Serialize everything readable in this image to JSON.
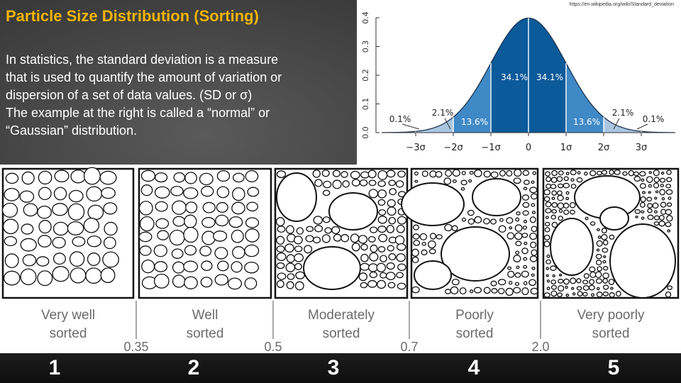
{
  "title": "Particle Size Distribution (Sorting)",
  "body_lines": [
    "In statistics, the standard deviation is a measure",
    "that is used to quantify the amount of variation or",
    "dispersion of a set of data values. (SD or σ)",
    "The example at the right is called a “normal” or",
    "“Gaussian” distribution."
  ],
  "source_url": "https://en.wikipedia.org/wiki/Standard_deviation",
  "chart_data": {
    "type": "area",
    "title": "",
    "xlabel": "",
    "ylabel": "",
    "xlim": [
      -3.9,
      3.9
    ],
    "ylim": [
      0,
      0.4
    ],
    "y_ticks": [
      "0.0",
      "0.1",
      "0.2",
      "0.3",
      "0.4"
    ],
    "x_ticks": [
      "−3σ",
      "−2σ",
      "−1σ",
      "0",
      "1σ",
      "2σ",
      "3σ"
    ],
    "x_tick_values": [
      -3,
      -2,
      -1,
      0,
      1,
      2,
      3
    ],
    "bands": [
      {
        "from": -3.9,
        "to": -3,
        "percent": "0.1%",
        "color": "#a9c6e1"
      },
      {
        "from": -3,
        "to": -2,
        "percent": "2.1%",
        "color": "#a9c6e1"
      },
      {
        "from": -2,
        "to": -1,
        "percent": "13.6%",
        "color": "#3f89c6"
      },
      {
        "from": -1,
        "to": 0,
        "percent": "34.1%",
        "color": "#0b5a99"
      },
      {
        "from": 0,
        "to": 1,
        "percent": "34.1%",
        "color": "#0b5a99"
      },
      {
        "from": 1,
        "to": 2,
        "percent": "13.6%",
        "color": "#3f89c6"
      },
      {
        "from": 2,
        "to": 3,
        "percent": "2.1%",
        "color": "#a9c6e1"
      },
      {
        "from": 3,
        "to": 3.9,
        "percent": "0.1%",
        "color": "#a9c6e1"
      }
    ]
  },
  "sorting": {
    "labels": [
      [
        "Very well",
        "sorted"
      ],
      [
        "Well",
        "sorted"
      ],
      [
        "Moderately",
        "sorted"
      ],
      [
        "Poorly",
        "sorted"
      ],
      [
        "Very poorly",
        "sorted"
      ]
    ],
    "thresholds": [
      "0.35",
      "0.5",
      "0.7",
      "2.0"
    ]
  },
  "numbers": [
    "1",
    "2",
    "3",
    "4",
    "5"
  ]
}
